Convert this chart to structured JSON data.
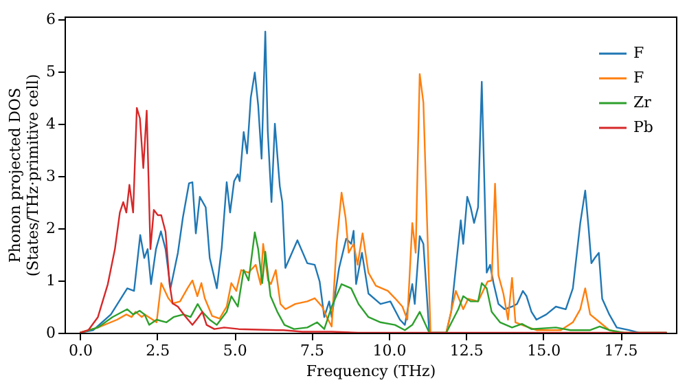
{
  "chart_data": {
    "type": "line",
    "xlabel": "Frequency (THz)",
    "ylabel": "Phonon projected DOS\n(States/THz·primitive cell)",
    "xlim": [
      -0.5,
      19.3
    ],
    "ylim": [
      0,
      6.05
    ],
    "xticks": [
      {
        "value": 0,
        "label": "0.0"
      },
      2.5,
      {
        "value": 5,
        "label": "5.0"
      },
      7.5,
      {
        "value": 10,
        "label": "10.0"
      },
      12.5,
      {
        "value": 15,
        "label": "15.0"
      },
      17.5
    ],
    "yticks": [
      0,
      1,
      2,
      3,
      4,
      5,
      6
    ],
    "grid": false,
    "legend": "top right",
    "series": [
      {
        "name": "F",
        "color": "#1f77b4",
        "x": [
          0,
          0.43,
          1.0,
          1.53,
          1.75,
          1.95,
          2.08,
          2.19,
          2.3,
          2.46,
          2.62,
          2.77,
          2.93,
          3.17,
          3.33,
          3.53,
          3.64,
          3.75,
          3.88,
          4.07,
          4.2,
          4.43,
          4.59,
          4.75,
          4.86,
          4.99,
          5.11,
          5.17,
          5.3,
          5.41,
          5.53,
          5.66,
          5.77,
          5.88,
          6.0,
          6.08,
          6.2,
          6.31,
          6.47,
          6.55,
          6.65,
          7.04,
          7.36,
          7.6,
          7.76,
          7.91,
          8.07,
          8.15,
          8.39,
          8.62,
          8.78,
          8.86,
          8.94,
          9.13,
          9.34,
          9.73,
          10.05,
          10.36,
          10.52,
          10.76,
          10.84,
          11.0,
          11.12,
          11.31,
          11.86,
          12.02,
          12.33,
          12.41,
          12.54,
          12.65,
          12.76,
          12.89,
          13.01,
          13.17,
          13.28,
          13.39,
          13.55,
          13.75,
          13.99,
          14.15,
          14.34,
          14.46,
          14.62,
          14.78,
          15.1,
          15.41,
          15.73,
          15.96,
          16.2,
          16.36,
          16.47,
          16.56,
          16.67,
          16.8,
          16.91,
          17.14,
          17.38,
          17.78,
          18.1,
          19.0
        ],
        "values": [
          0,
          0.05,
          0.35,
          0.85,
          0.8,
          1.87,
          1.43,
          1.6,
          0.93,
          1.6,
          1.94,
          1.6,
          0.85,
          1.53,
          2.2,
          2.86,
          2.88,
          1.9,
          2.6,
          2.4,
          1.43,
          0.85,
          1.63,
          2.88,
          2.3,
          2.9,
          3.03,
          2.9,
          3.84,
          3.43,
          4.5,
          4.98,
          4.35,
          3.33,
          5.76,
          3.86,
          2.5,
          4.0,
          2.8,
          2.5,
          1.24,
          1.77,
          1.33,
          1.3,
          0.98,
          0.3,
          0.6,
          0.3,
          1.24,
          1.8,
          1.7,
          1.95,
          0.93,
          1.53,
          0.75,
          0.55,
          0.6,
          0.25,
          0.15,
          0.93,
          0.55,
          1.85,
          1.7,
          0,
          0,
          0.4,
          2.15,
          1.7,
          2.6,
          2.4,
          2.1,
          2.4,
          4.8,
          1.15,
          1.3,
          0.95,
          0.55,
          0.45,
          0.5,
          0.55,
          0.8,
          0.7,
          0.4,
          0.25,
          0.35,
          0.5,
          0.45,
          0.85,
          2.1,
          2.72,
          2.0,
          1.33,
          1.43,
          1.53,
          0.65,
          0.35,
          0.1,
          0.05,
          0,
          0
        ]
      },
      {
        "name": "F",
        "color": "#ff7f0e",
        "x": [
          0,
          0.58,
          1.2,
          1.5,
          1.67,
          1.8,
          2.0,
          2.1,
          2.48,
          2.63,
          2.86,
          3.0,
          3.24,
          3.48,
          3.64,
          3.8,
          3.93,
          4.04,
          4.28,
          4.52,
          4.75,
          4.9,
          5.06,
          5.22,
          5.46,
          5.69,
          5.85,
          5.93,
          6.09,
          6.18,
          6.34,
          6.49,
          6.65,
          6.97,
          7.36,
          7.6,
          7.84,
          7.99,
          8.15,
          8.31,
          8.47,
          8.6,
          8.7,
          8.86,
          8.99,
          9.15,
          9.34,
          9.58,
          9.97,
          10.2,
          10.44,
          10.6,
          10.76,
          10.87,
          11.0,
          11.12,
          11.35,
          11.86,
          12.17,
          12.41,
          12.57,
          12.89,
          13.2,
          13.33,
          13.44,
          13.55,
          13.71,
          13.86,
          13.99,
          14.1,
          14.31,
          14.78,
          15.57,
          15.96,
          16.2,
          16.36,
          16.52,
          16.83,
          17.14,
          17.46,
          19.0
        ],
        "values": [
          0,
          0.1,
          0.25,
          0.35,
          0.3,
          0.4,
          0.3,
          0.35,
          0.2,
          0.95,
          0.66,
          0.56,
          0.6,
          0.85,
          1.0,
          0.7,
          0.95,
          0.66,
          0.32,
          0.27,
          0.5,
          0.95,
          0.8,
          1.2,
          1.15,
          1.3,
          0.92,
          1.7,
          1.0,
          0.93,
          1.2,
          0.55,
          0.45,
          0.55,
          0.6,
          0.66,
          0.5,
          0.3,
          0.12,
          1.7,
          2.68,
          2.2,
          1.53,
          1.7,
          1.3,
          1.9,
          1.15,
          0.9,
          0.8,
          0.66,
          0.5,
          0.25,
          2.1,
          1.53,
          4.95,
          4.4,
          0,
          0,
          0.8,
          0.45,
          0.65,
          0.6,
          0.98,
          1.0,
          2.85,
          1.1,
          0.75,
          0.25,
          1.05,
          0.2,
          0.15,
          0.05,
          0.05,
          0.2,
          0.45,
          0.85,
          0.35,
          0.2,
          0.05,
          0,
          0
        ]
      },
      {
        "name": "Zr",
        "color": "#2ca02c",
        "x": [
          0,
          0.58,
          1.05,
          1.53,
          1.72,
          1.93,
          2.09,
          2.24,
          2.48,
          2.8,
          3.03,
          3.35,
          3.58,
          3.81,
          3.96,
          4.2,
          4.43,
          4.75,
          4.9,
          5.11,
          5.3,
          5.46,
          5.66,
          5.77,
          5.9,
          6.0,
          6.17,
          6.39,
          6.62,
          6.93,
          7.36,
          7.68,
          7.91,
          8.15,
          8.47,
          8.78,
          9.02,
          9.34,
          9.73,
          10.2,
          10.52,
          10.76,
          11.0,
          11.31,
          11.86,
          12.25,
          12.41,
          12.65,
          12.89,
          13.01,
          13.17,
          13.33,
          13.6,
          13.99,
          14.31,
          14.62,
          15.41,
          15.88,
          16.52,
          16.83,
          17.14,
          17.62,
          19.0
        ],
        "values": [
          0,
          0.1,
          0.3,
          0.45,
          0.35,
          0.42,
          0.35,
          0.15,
          0.25,
          0.2,
          0.3,
          0.35,
          0.3,
          0.55,
          0.4,
          0.25,
          0.15,
          0.4,
          0.7,
          0.5,
          1.2,
          1.0,
          1.92,
          1.6,
          0.95,
          1.55,
          0.7,
          0.4,
          0.15,
          0.07,
          0.1,
          0.2,
          0.07,
          0.5,
          0.93,
          0.85,
          0.55,
          0.3,
          0.2,
          0.15,
          0.05,
          0.15,
          0.4,
          0,
          0,
          0.45,
          0.7,
          0.6,
          0.6,
          0.95,
          0.85,
          0.4,
          0.2,
          0.1,
          0.17,
          0.07,
          0.1,
          0.05,
          0.05,
          0.12,
          0.05,
          0,
          0
        ]
      },
      {
        "name": "Pb",
        "color": "#d62728",
        "x": [
          0,
          0.27,
          0.58,
          0.9,
          1.13,
          1.29,
          1.4,
          1.5,
          1.6,
          1.72,
          1.84,
          1.94,
          2.05,
          2.16,
          2.28,
          2.39,
          2.52,
          2.63,
          2.77,
          2.9,
          3.0,
          3.17,
          3.4,
          3.64,
          3.8,
          3.96,
          4.1,
          4.35,
          4.67,
          5.14,
          5.77,
          6.4,
          6.58,
          7.2,
          8.15,
          9.0,
          19.0
        ],
        "values": [
          0,
          0.05,
          0.3,
          0.93,
          1.6,
          2.3,
          2.5,
          2.3,
          2.83,
          2.3,
          4.3,
          4.1,
          3.15,
          4.25,
          1.6,
          2.35,
          2.25,
          2.25,
          1.93,
          0.93,
          0.56,
          0.5,
          0.32,
          0.15,
          0.27,
          0.4,
          0.15,
          0.07,
          0.1,
          0.07,
          0.06,
          0.05,
          0.05,
          0.02,
          0.02,
          0,
          0
        ]
      }
    ]
  }
}
